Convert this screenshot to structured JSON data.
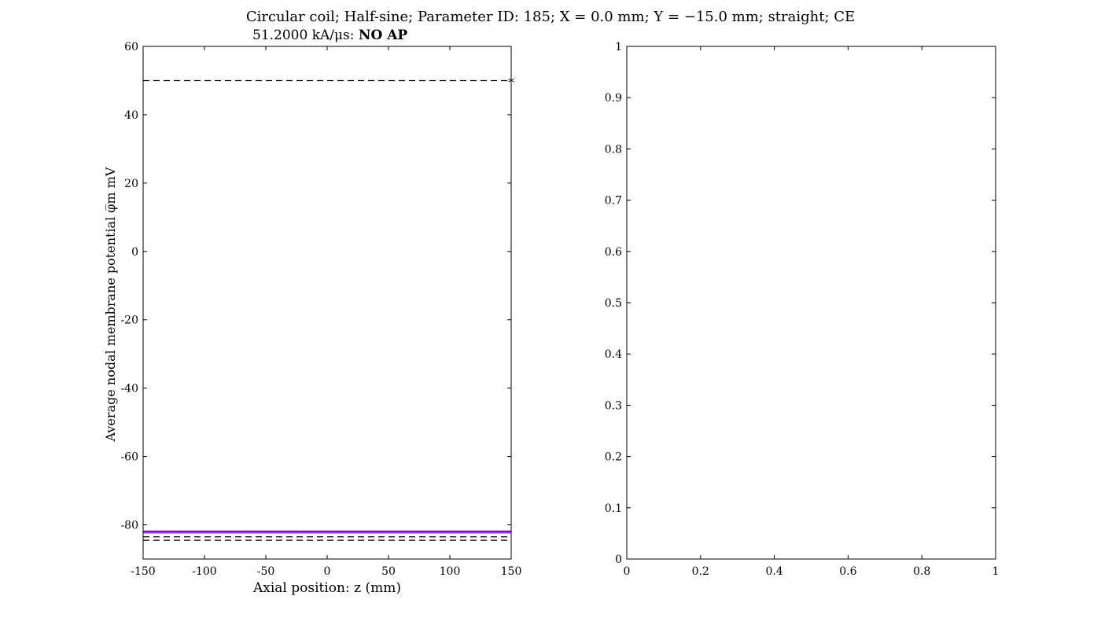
{
  "figure": {
    "title": "Circular coil; Half-sine; Parameter ID: 185; X = 0.0 mm; Y = −15.0 mm; straight; CE"
  },
  "chart_data": [
    {
      "type": "line",
      "subtitle_value": "51.2000 kA/μs:",
      "subtitle_status": "NO AP",
      "xlabel": "Axial position: z (mm)",
      "ylabel": "Average nodal membrane potential φ̅m mV",
      "xlim": [
        -150,
        150
      ],
      "ylim": [
        -90,
        60
      ],
      "xticks": [
        -150,
        -100,
        -50,
        0,
        50,
        100,
        150
      ],
      "yticks": [
        -80,
        -60,
        -40,
        -20,
        0,
        20,
        40,
        60
      ],
      "grid": false,
      "series": [
        {
          "style": "solid",
          "color": "#8a00ff",
          "x": [
            -150,
            150
          ],
          "y": [
            -82,
            -82
          ]
        },
        {
          "style": "solid",
          "color": "#b0b0b0",
          "x": [
            -150,
            150
          ],
          "y": [
            -82.5,
            -82.5
          ]
        },
        {
          "style": "dashed",
          "color": "#000000",
          "x": [
            -150,
            150
          ],
          "y": [
            50,
            50
          ]
        },
        {
          "style": "dashed",
          "color": "#000000",
          "x": [
            -150,
            150
          ],
          "y": [
            -83.5,
            -83.5
          ]
        },
        {
          "style": "dashed",
          "color": "#000000",
          "x": [
            -150,
            150
          ],
          "y": [
            -84.5,
            -84.5
          ]
        }
      ],
      "markers": [
        {
          "symbol": "*",
          "x": 150,
          "y": 50
        }
      ]
    },
    {
      "type": "line",
      "xlim": [
        0,
        1
      ],
      "ylim": [
        0,
        1
      ],
      "xticks": [
        0,
        0.2,
        0.4,
        0.6,
        0.8,
        1
      ],
      "yticks": [
        0,
        0.1,
        0.2,
        0.3,
        0.4,
        0.5,
        0.6,
        0.7,
        0.8,
        0.9,
        1
      ],
      "grid": false,
      "series": []
    }
  ]
}
